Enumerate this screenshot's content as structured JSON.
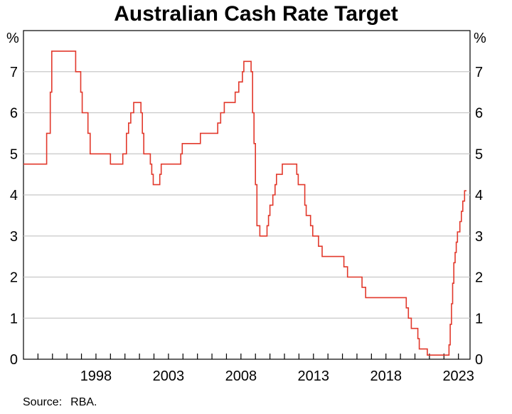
{
  "chart_data": {
    "type": "line",
    "title": "Australian Cash Rate Target",
    "unit_left": "%",
    "unit_right": "%",
    "source_label": "Source:",
    "source_value": "RBA.",
    "xlim": [
      1993.0,
      2023.8
    ],
    "ylim": [
      0,
      8
    ],
    "y_ticks": [
      0,
      1,
      2,
      3,
      4,
      5,
      6,
      7
    ],
    "x_tick_labels": [
      "1998",
      "2003",
      "2008",
      "2013",
      "2018",
      "2023"
    ],
    "x_minor_ticks": [
      1994,
      1995,
      1996,
      1997,
      1998,
      1999,
      2000,
      2001,
      2002,
      2003,
      2004,
      2005,
      2006,
      2007,
      2008,
      2009,
      2010,
      2011,
      2012,
      2013,
      2014,
      2015,
      2016,
      2017,
      2018,
      2019,
      2020,
      2021,
      2022,
      2023
    ],
    "grid": true,
    "line_color": "#e2382b",
    "series": [
      {
        "step": true,
        "points": [
          [
            1993.0,
            4.75
          ],
          [
            1994.6,
            5.5
          ],
          [
            1994.85,
            6.5
          ],
          [
            1994.95,
            7.5
          ],
          [
            1996.6,
            7.0
          ],
          [
            1996.95,
            6.5
          ],
          [
            1997.05,
            6.0
          ],
          [
            1997.45,
            5.5
          ],
          [
            1997.6,
            5.0
          ],
          [
            1999.0,
            4.75
          ],
          [
            1999.85,
            5.0
          ],
          [
            2000.1,
            5.5
          ],
          [
            2000.25,
            5.75
          ],
          [
            2000.4,
            6.0
          ],
          [
            2000.6,
            6.25
          ],
          [
            2001.1,
            6.0
          ],
          [
            2001.2,
            5.5
          ],
          [
            2001.3,
            5.0
          ],
          [
            2001.75,
            4.75
          ],
          [
            2001.85,
            4.5
          ],
          [
            2001.95,
            4.25
          ],
          [
            2002.4,
            4.5
          ],
          [
            2002.5,
            4.75
          ],
          [
            2003.85,
            5.0
          ],
          [
            2003.95,
            5.25
          ],
          [
            2005.2,
            5.5
          ],
          [
            2006.4,
            5.75
          ],
          [
            2006.6,
            6.0
          ],
          [
            2006.85,
            6.25
          ],
          [
            2007.6,
            6.5
          ],
          [
            2007.85,
            6.75
          ],
          [
            2008.1,
            7.0
          ],
          [
            2008.2,
            7.25
          ],
          [
            2008.7,
            7.0
          ],
          [
            2008.8,
            6.0
          ],
          [
            2008.9,
            5.25
          ],
          [
            2009.0,
            4.25
          ],
          [
            2009.1,
            3.25
          ],
          [
            2009.3,
            3.0
          ],
          [
            2009.8,
            3.25
          ],
          [
            2009.9,
            3.5
          ],
          [
            2010.0,
            3.75
          ],
          [
            2010.2,
            4.0
          ],
          [
            2010.35,
            4.25
          ],
          [
            2010.45,
            4.5
          ],
          [
            2010.85,
            4.75
          ],
          [
            2011.85,
            4.5
          ],
          [
            2011.95,
            4.25
          ],
          [
            2012.4,
            3.75
          ],
          [
            2012.5,
            3.5
          ],
          [
            2012.8,
            3.25
          ],
          [
            2012.95,
            3.0
          ],
          [
            2013.35,
            2.75
          ],
          [
            2013.6,
            2.5
          ],
          [
            2015.1,
            2.25
          ],
          [
            2015.35,
            2.0
          ],
          [
            2016.35,
            1.75
          ],
          [
            2016.6,
            1.5
          ],
          [
            2019.4,
            1.25
          ],
          [
            2019.55,
            1.0
          ],
          [
            2019.75,
            0.75
          ],
          [
            2020.2,
            0.5
          ],
          [
            2020.3,
            0.25
          ],
          [
            2020.85,
            0.1
          ],
          [
            2022.35,
            0.35
          ],
          [
            2022.43,
            0.85
          ],
          [
            2022.52,
            1.35
          ],
          [
            2022.6,
            1.85
          ],
          [
            2022.68,
            2.35
          ],
          [
            2022.77,
            2.6
          ],
          [
            2022.85,
            2.85
          ],
          [
            2022.93,
            3.1
          ],
          [
            2023.1,
            3.35
          ],
          [
            2023.2,
            3.6
          ],
          [
            2023.3,
            3.85
          ],
          [
            2023.42,
            4.1
          ],
          [
            2023.55,
            4.1
          ]
        ]
      }
    ]
  }
}
